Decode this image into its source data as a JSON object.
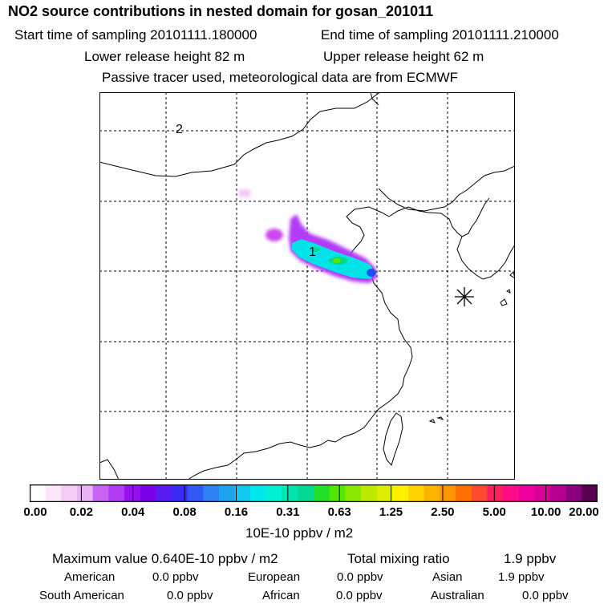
{
  "header": {
    "title": "NO2 source contributions in nested domain for gosan_201011",
    "start_time": "Start time of sampling 20101111.180000",
    "end_time": "End time of sampling 20101111.210000",
    "lower_release": "Lower release height   82 m",
    "upper_release": "Upper release height   62 m",
    "tracer_note": "Passive tracer used, meteorological data are from ECMWF"
  },
  "map": {
    "markers": [
      {
        "label": "1"
      },
      {
        "label": "2"
      }
    ],
    "receptor_symbol": "receptor-asterisk"
  },
  "colorbar": {
    "colors": [
      "#ffffff",
      "#fbe6fb",
      "#f5ccf5",
      "#eab2f3",
      "#c964f5",
      "#b33af5",
      "#9a0ff0",
      "#7c00e8",
      "#5a1bf2",
      "#3a2cf5",
      "#3058f5",
      "#2f80f5",
      "#1ea3f0",
      "#10c8f0",
      "#00e8ee",
      "#00f0d4",
      "#00e6b0",
      "#00d890",
      "#20e02a",
      "#50e800",
      "#8ae800",
      "#bde800",
      "#dcef00",
      "#fff000",
      "#ffd200",
      "#ffb400",
      "#ff9600",
      "#ff7000",
      "#ff4a30",
      "#ff2060",
      "#ff0a88",
      "#ee00a0",
      "#d80098",
      "#b80090",
      "#8c0080",
      "#5a0050"
    ],
    "tick_labels": [
      "0.00",
      "0.02",
      "0.04",
      "0.08",
      "0.16",
      "0.31",
      "0.63",
      "1.25",
      "2.50",
      "5.00",
      "10.00",
      "20.00"
    ],
    "units": "10E-10 ppbv / m2"
  },
  "stats": {
    "max_value": "Maximum value  0.640E-10 ppbv / m2",
    "total_mixing": "Total mixing ratio",
    "total_mixing_value": "1.9 ppbv",
    "regions": [
      {
        "name": "American",
        "value": "0.0 ppbv"
      },
      {
        "name": "European",
        "value": "0.0 ppbv"
      },
      {
        "name": "Asian",
        "value": "1.9 ppbv"
      },
      {
        "name": "South American",
        "value": "0.0 ppbv"
      },
      {
        "name": "African",
        "value": "0.0 ppbv"
      },
      {
        "name": "Australian",
        "value": "0.0 ppbv"
      }
    ]
  }
}
